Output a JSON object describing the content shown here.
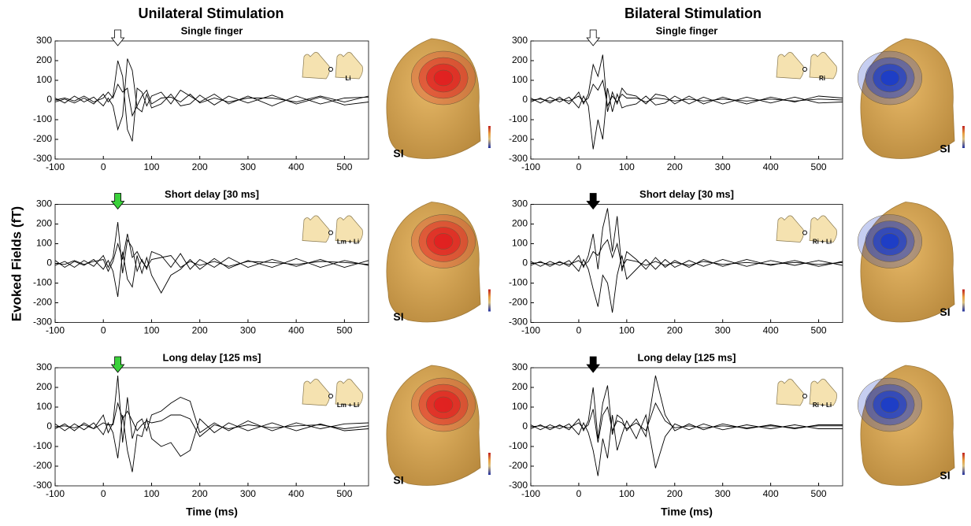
{
  "figure": {
    "column_titles": [
      "Unilateral Stimulation",
      "Bilateral Stimulation"
    ],
    "ylabel": "Evoked Fields (fT)"
  },
  "chart_data": [
    {
      "type": "line",
      "title": "Single finger",
      "stimulus_label": "Li",
      "head_label": "SI",
      "map_color": "#e02020",
      "arrow": {
        "x": 30,
        "color": "#ffffff"
      },
      "x": [
        -100,
        -80,
        -60,
        -40,
        -20,
        0,
        10,
        20,
        30,
        40,
        50,
        60,
        70,
        80,
        90,
        100,
        120,
        140,
        160,
        180,
        200,
        230,
        260,
        300,
        350,
        400,
        450,
        500,
        550
      ],
      "series": [
        {
          "color": "#000000",
          "values": [
            -10,
            5,
            -15,
            10,
            -20,
            30,
            -10,
            20,
            200,
            120,
            -150,
            -210,
            60,
            40,
            -30,
            20,
            40,
            -20,
            50,
            20,
            -10,
            30,
            -20,
            20,
            -30,
            20,
            -20,
            10,
            15
          ]
        },
        {
          "color": "#000000",
          "values": [
            10,
            -15,
            20,
            -10,
            15,
            -30,
            10,
            -30,
            -150,
            -80,
            210,
            150,
            -40,
            -60,
            30,
            -40,
            -20,
            30,
            -30,
            -20,
            25,
            -25,
            20,
            -15,
            25,
            -20,
            15,
            -25,
            -10
          ]
        },
        {
          "color": "#000000",
          "values": [
            0,
            10,
            -5,
            20,
            -10,
            10,
            40,
            10,
            80,
            40,
            60,
            -80,
            -30,
            20,
            50,
            -20,
            10,
            15,
            -10,
            30,
            -15,
            10,
            -10,
            10,
            10,
            -10,
            20,
            -10,
            20
          ]
        }
      ],
      "xlim": [
        -100,
        550
      ],
      "ylim": [
        -300,
        300
      ],
      "xticks": [
        -100,
        0,
        100,
        200,
        300,
        400,
        500
      ],
      "yticks": [
        -300,
        -200,
        -100,
        0,
        100,
        200,
        300
      ]
    },
    {
      "type": "line",
      "title": "Single finger",
      "stimulus_label": "Ri",
      "head_label": "SI",
      "map_color": "#1a3cc8",
      "arrow": {
        "x": 30,
        "color": "#ffffff"
      },
      "x": [
        -100,
        -80,
        -60,
        -40,
        -20,
        0,
        10,
        20,
        30,
        40,
        50,
        60,
        70,
        80,
        90,
        100,
        120,
        140,
        160,
        180,
        200,
        230,
        260,
        300,
        350,
        400,
        450,
        500,
        550
      ],
      "series": [
        {
          "color": "#000000",
          "values": [
            -10,
            10,
            -15,
            15,
            -20,
            40,
            -20,
            30,
            180,
            120,
            230,
            -60,
            40,
            -20,
            60,
            30,
            20,
            -20,
            30,
            20,
            -20,
            20,
            -20,
            15,
            -20,
            15,
            -10,
            20,
            10
          ]
        },
        {
          "color": "#000000",
          "values": [
            10,
            -15,
            15,
            -10,
            15,
            -40,
            20,
            -30,
            -250,
            -100,
            -200,
            60,
            -60,
            30,
            -40,
            -30,
            -20,
            20,
            -25,
            -15,
            20,
            -20,
            15,
            -20,
            15,
            -15,
            15,
            -15,
            -10
          ]
        },
        {
          "color": "#000000",
          "values": [
            0,
            5,
            -5,
            5,
            -5,
            20,
            -10,
            10,
            80,
            50,
            100,
            -30,
            20,
            -10,
            30,
            10,
            10,
            -10,
            10,
            5,
            -5,
            5,
            -5,
            5,
            -5,
            5,
            -5,
            5,
            0
          ]
        }
      ],
      "xlim": [
        -100,
        550
      ],
      "ylim": [
        -300,
        300
      ],
      "xticks": [
        -100,
        0,
        100,
        200,
        300,
        400,
        500
      ],
      "yticks": [
        -300,
        -200,
        -100,
        0,
        100,
        200,
        300
      ]
    },
    {
      "type": "line",
      "title": "Short delay [30 ms]",
      "stimulus_label": "Lm + Li",
      "head_label": "SI",
      "map_color": "#e02020",
      "arrow": {
        "x": 30,
        "color": "#3ad13a"
      },
      "x": [
        -100,
        -80,
        -60,
        -40,
        -20,
        0,
        10,
        20,
        30,
        40,
        50,
        60,
        70,
        80,
        90,
        100,
        120,
        140,
        160,
        180,
        200,
        230,
        260,
        300,
        350,
        400,
        450,
        500,
        550
      ],
      "series": [
        {
          "color": "#000000",
          "values": [
            -10,
            10,
            -20,
            15,
            -15,
            40,
            -20,
            30,
            210,
            -50,
            120,
            80,
            -40,
            20,
            -30,
            60,
            40,
            -20,
            50,
            -30,
            20,
            -20,
            30,
            -20,
            20,
            -15,
            20,
            -20,
            15
          ]
        },
        {
          "color": "#000000",
          "values": [
            15,
            -20,
            10,
            -10,
            20,
            -30,
            15,
            -40,
            -170,
            60,
            -80,
            -120,
            40,
            -50,
            30,
            -60,
            -150,
            -60,
            -30,
            20,
            -30,
            25,
            -25,
            15,
            -20,
            25,
            -20,
            15,
            -10
          ]
        },
        {
          "color": "#000000",
          "values": [
            0,
            -5,
            15,
            -5,
            10,
            20,
            -40,
            10,
            100,
            20,
            150,
            30,
            60,
            10,
            -20,
            20,
            30,
            40,
            -20,
            10,
            -10,
            10,
            -15,
            10,
            5,
            -5,
            10,
            5,
            -5
          ]
        }
      ],
      "xlim": [
        -100,
        550
      ],
      "ylim": [
        -300,
        300
      ],
      "xticks": [
        -100,
        0,
        100,
        200,
        300,
        400,
        500
      ],
      "yticks": [
        -300,
        -200,
        -100,
        0,
        100,
        200,
        300
      ]
    },
    {
      "type": "line",
      "title": "Short delay [30 ms]",
      "stimulus_label": "Ri + Li",
      "head_label": "SI",
      "map_color": "#1a3cc8",
      "arrow": {
        "x": 30,
        "color": "#000000"
      },
      "x": [
        -100,
        -80,
        -60,
        -40,
        -20,
        0,
        10,
        20,
        30,
        40,
        50,
        60,
        70,
        80,
        90,
        100,
        120,
        140,
        160,
        180,
        200,
        230,
        260,
        300,
        350,
        400,
        450,
        500,
        550
      ],
      "series": [
        {
          "color": "#000000",
          "values": [
            -10,
            10,
            -15,
            10,
            -15,
            40,
            -20,
            40,
            150,
            -30,
            180,
            280,
            60,
            240,
            -40,
            60,
            20,
            -30,
            30,
            -20,
            15,
            -20,
            20,
            -15,
            20,
            -10,
            15,
            -15,
            10
          ]
        },
        {
          "color": "#000000",
          "values": [
            10,
            -15,
            10,
            -10,
            15,
            -40,
            20,
            -30,
            -130,
            -220,
            -60,
            -100,
            -250,
            -60,
            40,
            -80,
            -30,
            20,
            -30,
            20,
            -20,
            15,
            -15,
            20,
            -15,
            15,
            -10,
            15,
            -10
          ]
        },
        {
          "color": "#000000",
          "values": [
            0,
            5,
            -5,
            5,
            -5,
            15,
            -10,
            10,
            60,
            40,
            90,
            120,
            30,
            100,
            -20,
            20,
            10,
            -10,
            10,
            -10,
            5,
            -10,
            10,
            -5,
            5,
            -5,
            5,
            -5,
            5
          ]
        }
      ],
      "xlim": [
        -100,
        550
      ],
      "ylim": [
        -300,
        300
      ],
      "xticks": [
        -100,
        0,
        100,
        200,
        300,
        400,
        500
      ],
      "yticks": [
        -300,
        -200,
        -100,
        0,
        100,
        200,
        300
      ]
    },
    {
      "type": "line",
      "title": "Long delay [125 ms]",
      "stimulus_label": "Lm + Li",
      "head_label": "SI",
      "map_color": "#e02020",
      "arrow": {
        "x": 30,
        "color": "#3ad13a"
      },
      "xlabel": "Time (ms)",
      "x": [
        -100,
        -80,
        -60,
        -40,
        -20,
        0,
        10,
        20,
        30,
        40,
        50,
        60,
        70,
        80,
        90,
        100,
        120,
        140,
        160,
        180,
        200,
        230,
        260,
        300,
        350,
        400,
        450,
        500,
        550
      ],
      "series": [
        {
          "color": "#000000",
          "values": [
            -10,
            15,
            -20,
            20,
            -10,
            60,
            -30,
            20,
            260,
            -80,
            150,
            -60,
            20,
            40,
            -20,
            60,
            80,
            120,
            150,
            130,
            -30,
            20,
            -20,
            30,
            -20,
            20,
            -10,
            15,
            20
          ]
        },
        {
          "color": "#000000",
          "values": [
            15,
            -20,
            15,
            -15,
            20,
            -40,
            20,
            -30,
            -160,
            60,
            -120,
            -230,
            -40,
            -50,
            40,
            -60,
            -100,
            -80,
            -150,
            -120,
            40,
            -30,
            20,
            -20,
            20,
            -20,
            15,
            -20,
            -10
          ]
        },
        {
          "color": "#000000",
          "values": [
            0,
            5,
            -5,
            10,
            -10,
            20,
            10,
            10,
            120,
            40,
            80,
            30,
            -20,
            10,
            30,
            20,
            30,
            60,
            60,
            40,
            -50,
            10,
            -10,
            10,
            -5,
            5,
            10,
            -10,
            5
          ]
        }
      ],
      "xlim": [
        -100,
        550
      ],
      "ylim": [
        -300,
        300
      ],
      "xticks": [
        -100,
        0,
        100,
        200,
        300,
        400,
        500
      ],
      "yticks": [
        -300,
        -200,
        -100,
        0,
        100,
        200,
        300
      ]
    },
    {
      "type": "line",
      "title": "Long delay [125 ms]",
      "stimulus_label": "Ri + Li",
      "head_label": "SI",
      "map_color": "#1a3cc8",
      "arrow": {
        "x": 30,
        "color": "#000000"
      },
      "xlabel": "Time (ms)",
      "x": [
        -100,
        -80,
        -60,
        -40,
        -20,
        0,
        10,
        20,
        30,
        40,
        50,
        60,
        70,
        80,
        90,
        100,
        120,
        140,
        160,
        180,
        200,
        230,
        260,
        300,
        350,
        400,
        450,
        500,
        550
      ],
      "series": [
        {
          "color": "#000000",
          "values": [
            -10,
            10,
            -15,
            10,
            -15,
            40,
            -20,
            30,
            200,
            -60,
            120,
            210,
            -40,
            60,
            40,
            -20,
            40,
            -50,
            260,
            60,
            -20,
            15,
            -15,
            15,
            -10,
            10,
            -10,
            10,
            10
          ]
        },
        {
          "color": "#000000",
          "values": [
            10,
            -15,
            10,
            -10,
            15,
            -40,
            20,
            -30,
            -120,
            -250,
            -60,
            -160,
            60,
            -120,
            -40,
            30,
            -60,
            60,
            -210,
            -50,
            15,
            -15,
            15,
            -15,
            10,
            -10,
            10,
            -10,
            -10
          ]
        },
        {
          "color": "#000000",
          "values": [
            0,
            5,
            -5,
            5,
            -5,
            20,
            -10,
            10,
            90,
            -80,
            60,
            100,
            -20,
            30,
            20,
            -10,
            20,
            -20,
            120,
            30,
            -5,
            5,
            -5,
            5,
            -5,
            5,
            -5,
            5,
            5
          ]
        }
      ],
      "xlim": [
        -100,
        550
      ],
      "ylim": [
        -300,
        300
      ],
      "xticks": [
        -100,
        0,
        100,
        200,
        300,
        400,
        500
      ],
      "yticks": [
        -300,
        -200,
        -100,
        0,
        100,
        200,
        300
      ]
    }
  ]
}
